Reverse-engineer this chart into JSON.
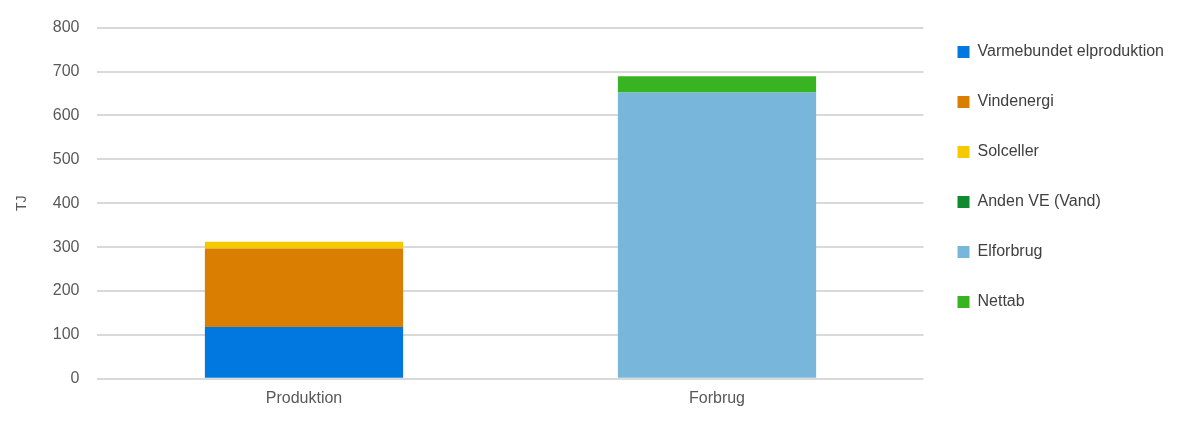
{
  "chart_data": {
    "type": "bar",
    "stacked": true,
    "ylabel": "TJ",
    "categories": [
      "Produktion",
      "Forbrug"
    ],
    "ylim": [
      0,
      800
    ],
    "yticks": [
      0,
      100,
      200,
      300,
      400,
      500,
      600,
      700,
      800
    ],
    "grid": "y",
    "legend": "right",
    "series": [
      {
        "name": "Varmebundet elproduktion",
        "color": "#0078e0",
        "values": [
          118,
          0
        ]
      },
      {
        "name": "Vindenergi",
        "color": "#d97e00",
        "values": [
          179,
          0
        ]
      },
      {
        "name": "Solceller",
        "color": "#f5c800",
        "values": [
          15,
          0
        ]
      },
      {
        "name": "Anden VE (Vand)",
        "color": "#0f8a30",
        "values": [
          0,
          0
        ]
      },
      {
        "name": "Elforbrug",
        "color": "#79b6dc",
        "values": [
          0,
          652
        ]
      },
      {
        "name": "Nettab",
        "color": "#38b321",
        "values": [
          0,
          37
        ]
      }
    ]
  }
}
